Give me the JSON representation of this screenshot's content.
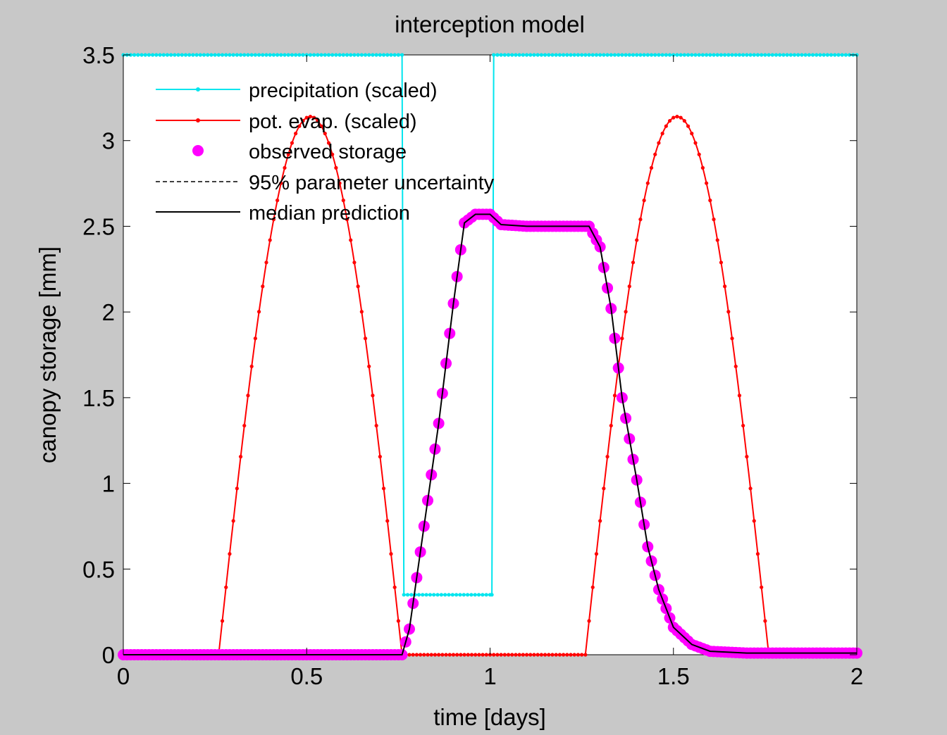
{
  "chart_data": {
    "type": "line",
    "title": "interception model",
    "xlabel": "time [days]",
    "ylabel": "canopy storage [mm]",
    "xlim": [
      0,
      2
    ],
    "ylim": [
      0,
      3.5
    ],
    "xticks": [
      0,
      0.5,
      1,
      1.5,
      2
    ],
    "xtick_labels": [
      "0",
      "0.5",
      "1",
      "1.5",
      "2"
    ],
    "yticks": [
      0,
      0.5,
      1,
      1.5,
      2,
      2.5,
      3,
      3.5
    ],
    "ytick_labels": [
      "0",
      "0.5",
      "1",
      "1.5",
      "2",
      "2.5",
      "3",
      "3.5"
    ],
    "grid": false,
    "legend_position": "top-left",
    "legend": [
      "precipitation (scaled)",
      "pot. evap. (scaled)",
      "observed storage",
      "95% parameter uncertainty",
      "median prediction"
    ],
    "series": [
      {
        "name": "precipitation (scaled)",
        "color": "#00e5ee",
        "style": "line-dot",
        "x": [
          0,
          0.76,
          0.765,
          1.0,
          1.005,
          1.01,
          2.0
        ],
        "y": [
          3.5,
          3.5,
          0.35,
          0.35,
          0.35,
          3.5,
          3.5
        ]
      },
      {
        "name": "pot. evap. (scaled)",
        "color": "#ff0000",
        "style": "line-dot",
        "x": [
          0,
          0.26,
          0.5,
          0.76,
          1.26,
          1.5,
          1.76,
          2.0
        ],
        "y": [
          0,
          0,
          3.14,
          0,
          0,
          3.14,
          0,
          0
        ]
      },
      {
        "name": "observed storage",
        "color": "#ff00ff",
        "style": "marker",
        "x": [
          0,
          0.76,
          0.78,
          0.82,
          0.86,
          0.9,
          0.93,
          0.96,
          1.0,
          1.03,
          1.1,
          1.2,
          1.27,
          1.3,
          1.33,
          1.36,
          1.4,
          1.43,
          1.46,
          1.5,
          1.55,
          1.6,
          1.7,
          2.0
        ],
        "y": [
          0,
          0,
          0.15,
          0.75,
          1.35,
          2.05,
          2.52,
          2.57,
          2.57,
          2.51,
          2.5,
          2.5,
          2.5,
          2.38,
          2.02,
          1.5,
          1.02,
          0.63,
          0.38,
          0.16,
          0.06,
          0.02,
          0.01,
          0.01
        ]
      },
      {
        "name": "95% parameter uncertainty",
        "color": "#000000",
        "style": "dashed"
      },
      {
        "name": "median prediction",
        "color": "#000000",
        "style": "line",
        "x": [
          0,
          0.76,
          0.78,
          0.82,
          0.86,
          0.9,
          0.93,
          0.96,
          1.0,
          1.03,
          1.1,
          1.2,
          1.27,
          1.3,
          1.33,
          1.36,
          1.4,
          1.43,
          1.46,
          1.5,
          1.55,
          1.6,
          1.7,
          2.0
        ],
        "y": [
          0,
          0,
          0.15,
          0.75,
          1.35,
          2.05,
          2.52,
          2.57,
          2.57,
          2.51,
          2.5,
          2.5,
          2.5,
          2.38,
          2.02,
          1.5,
          1.02,
          0.63,
          0.38,
          0.16,
          0.06,
          0.02,
          0.01,
          0.01
        ]
      }
    ]
  }
}
